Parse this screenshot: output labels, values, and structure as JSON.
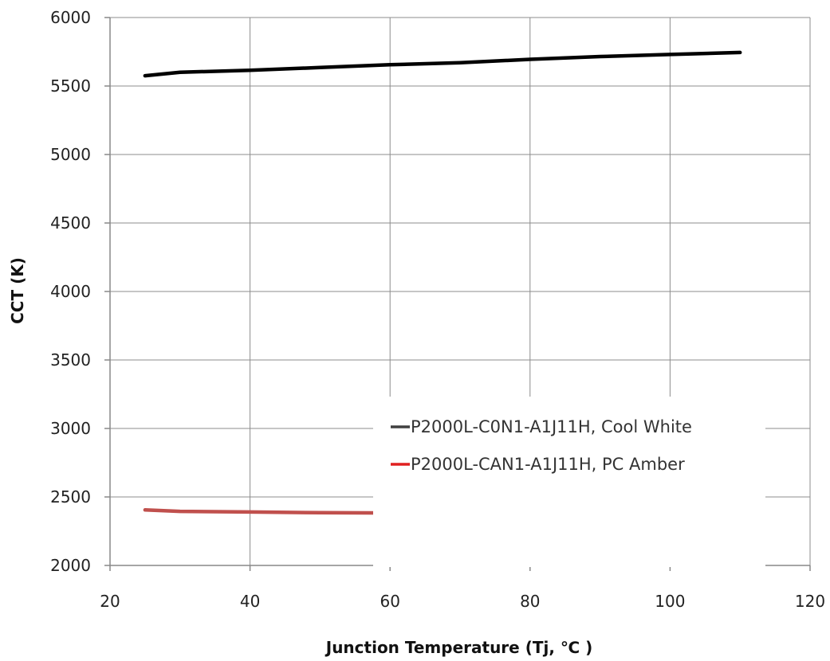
{
  "chart_data": {
    "type": "line",
    "xlabel": "Junction Temperature (Tj, ℃ )",
    "ylabel": "CCT (K)",
    "xlim": [
      20,
      120
    ],
    "ylim": [
      2000,
      6000
    ],
    "xticks": [
      20,
      40,
      60,
      80,
      100,
      120
    ],
    "yticks": [
      2000,
      2500,
      3000,
      3500,
      4000,
      4500,
      5000,
      5500,
      6000
    ],
    "grid": true,
    "legend_position": "lower-right",
    "series": [
      {
        "name": "P2000L-C0N1-A1J11H, Cool White",
        "color": "#000000",
        "legend_color": "#404040",
        "x": [
          25,
          30,
          40,
          50,
          60,
          70,
          80,
          90,
          100,
          110
        ],
        "y": [
          5575,
          5600,
          5615,
          5635,
          5655,
          5670,
          5695,
          5715,
          5730,
          5745
        ]
      },
      {
        "name": "P2000L-CAN1-A1J11H, PC Amber",
        "color": "#c0504d",
        "legend_color": "#e02020",
        "x": [
          25,
          30,
          40,
          50,
          60,
          70,
          80,
          90,
          100,
          109
        ],
        "y": [
          2405,
          2395,
          2390,
          2385,
          2383,
          2380,
          2378,
          2378,
          2376,
          2375
        ]
      }
    ]
  }
}
